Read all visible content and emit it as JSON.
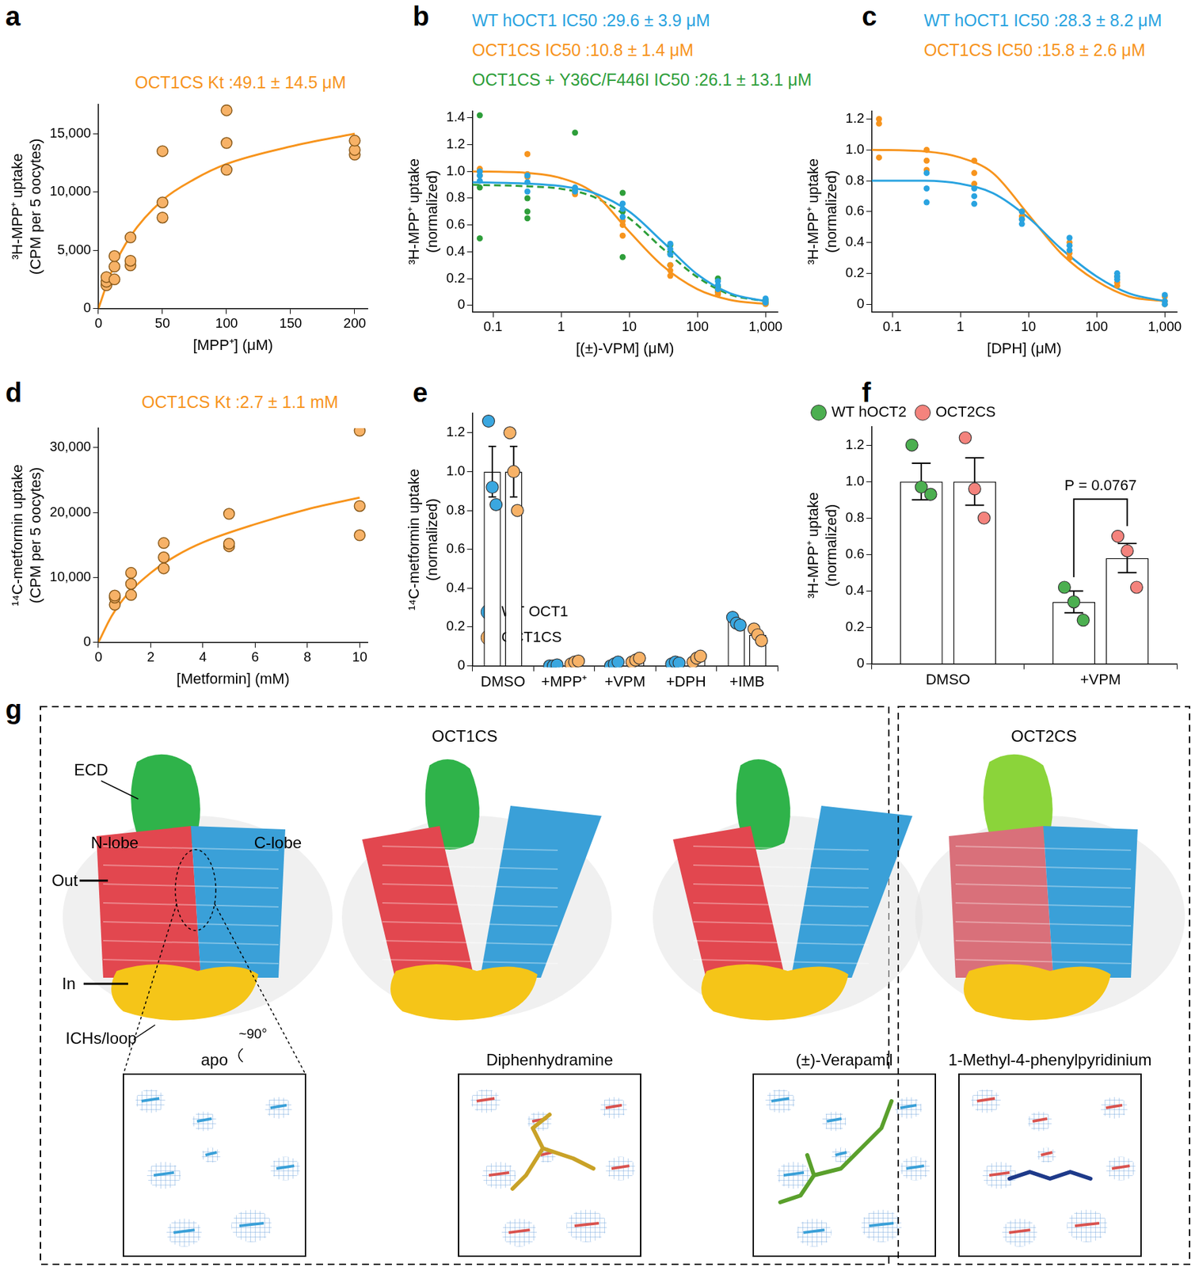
{
  "chart_data": [
    {
      "panel_label": "a",
      "type": "scatter",
      "annotations": [
        {
          "text": "OCT1CS Kt :49.1 ± 14.5 μM",
          "color": "#f7941d"
        }
      ],
      "x_label": "[MPP⁺] (μM)",
      "y_label": [
        "³H-MPP⁺ uptake",
        "(CPM per 5 oocytes)"
      ],
      "xlim": [
        0,
        210
      ],
      "xticks": [
        0,
        50,
        100,
        150,
        200
      ],
      "ylim": [
        0,
        17500
      ],
      "yticks": [
        0,
        {
          "value": 5000,
          "label": "5,000"
        },
        {
          "value": 10000,
          "label": "10,000"
        },
        {
          "value": 15000,
          "label": "15,000"
        }
      ],
      "grid": false,
      "series": [
        {
          "name": "OCT1CS",
          "type": "scatter",
          "marker": "circle_outlined",
          "color": "#f7b267",
          "x": [
            6.25,
            6.25,
            6.25,
            12.5,
            12.5,
            12.5,
            25,
            25,
            25,
            50,
            50,
            50,
            100,
            100,
            100,
            200,
            200,
            200
          ],
          "values": [
            2000,
            2300,
            2700,
            2500,
            3600,
            4500,
            3700,
            4100,
            6100,
            7800,
            9100,
            13500,
            11900,
            14200,
            17000,
            13200,
            13600,
            14400
          ]
        },
        {
          "name": "OCT1CS",
          "type": "line",
          "line_style": "solid",
          "color": "#f7941d",
          "x": [
            0,
            10,
            25,
            50,
            75,
            100,
            150,
            200
          ],
          "values": [
            0,
            3100,
            6200,
            9300,
            11100,
            12400,
            13900,
            15000
          ]
        }
      ]
    },
    {
      "panel_label": "b",
      "type": "scatter",
      "log": "x",
      "annotations": [
        {
          "text": "WT hOCT1 IC50 :29.6 ± 3.9 μM",
          "color": "#29a3e0"
        },
        {
          "text": "OCT1CS IC50 :10.8 ± 1.4 μM",
          "color": "#f7941d"
        },
        {
          "text": "OCT1CS + Y36C/F446I IC50 :26.1 ± 13.1 μM",
          "color": "#2e9e3a"
        }
      ],
      "x_label": "[(±)-VPM] (μM)",
      "y_label": [
        "³H-MPP⁺ uptake",
        "(normalized)"
      ],
      "xlim": [
        0.05,
        1500
      ],
      "xticks": [
        0.1,
        1,
        10,
        100,
        {
          "value": 1000,
          "label": "1,000"
        }
      ],
      "ylim": [
        -0.05,
        1.45
      ],
      "yticks": [
        0,
        0.2,
        0.4,
        0.6,
        0.8,
        {
          "value": 1,
          "label": "1.0"
        },
        1.2,
        1.4
      ],
      "grid": false,
      "series": [
        {
          "name": "WT hOCT1",
          "type": "scatter",
          "marker": "circle",
          "color": "#29a3e0",
          "x": [
            0.064,
            0.064,
            0.064,
            0.32,
            0.32,
            0.32,
            1.6,
            1.6,
            1.6,
            8,
            8,
            8,
            40,
            40,
            40,
            200,
            200,
            200,
            1000,
            1000,
            1000
          ],
          "values": [
            0.93,
            0.97,
            1.0,
            0.85,
            0.92,
            0.97,
            0.85,
            0.87,
            0.88,
            0.66,
            0.72,
            0.76,
            0.38,
            0.42,
            0.46,
            0.12,
            0.15,
            0.18,
            0.02,
            0.03,
            0.05
          ]
        },
        {
          "name": "OCT1CS",
          "type": "scatter",
          "marker": "circle",
          "color": "#f7941d",
          "x": [
            0.064,
            0.064,
            0.064,
            0.32,
            0.32,
            0.32,
            1.6,
            1.6,
            1.6,
            8,
            8,
            8,
            40,
            40,
            40,
            200,
            200,
            200,
            1000,
            1000,
            1000
          ],
          "values": [
            1.0,
            0.97,
            1.02,
            1.13,
            0.98,
            0.96,
            0.85,
            0.83,
            0.87,
            0.52,
            0.6,
            0.63,
            0.22,
            0.26,
            0.3,
            0.08,
            0.1,
            0.12,
            0.01,
            0.02,
            0.02
          ]
        },
        {
          "name": "OCT1CS + Y36C/F446I",
          "type": "scatter",
          "marker": "circle",
          "color": "#2e9e3a",
          "x": [
            0.064,
            0.064,
            0.064,
            0.32,
            0.32,
            0.32,
            1.6,
            1.6,
            1.6,
            8,
            8,
            8,
            40,
            40,
            40,
            200,
            200,
            200,
            1000,
            1000,
            1000
          ],
          "values": [
            1.42,
            0.88,
            0.5,
            0.7,
            0.65,
            0.8,
            0.86,
            0.85,
            1.29,
            0.84,
            0.7,
            0.36,
            0.45,
            0.4,
            0.3,
            0.2,
            0.14,
            0.1,
            0.04,
            0.02,
            0.01
          ]
        },
        {
          "name": "WT hOCT1",
          "type": "line",
          "line_style": "solid",
          "color": "#29a3e0",
          "x": [
            0.05,
            0.3,
            1,
            3,
            10,
            30,
            100,
            300,
            1000
          ],
          "values": [
            0.92,
            0.91,
            0.89,
            0.84,
            0.7,
            0.48,
            0.23,
            0.09,
            0.03
          ]
        },
        {
          "name": "OCT1CS",
          "type": "line",
          "line_style": "solid",
          "color": "#f7941d",
          "x": [
            0.05,
            0.3,
            1,
            3,
            10,
            30,
            100,
            300,
            1000
          ],
          "values": [
            1.0,
            0.99,
            0.95,
            0.84,
            0.55,
            0.3,
            0.12,
            0.04,
            0.01
          ]
        },
        {
          "name": "OCT1CS + Y36C/F446I",
          "type": "line",
          "line_style": "dashed",
          "color": "#2e9e3a",
          "x": [
            0.05,
            0.3,
            1,
            3,
            10,
            30,
            100,
            300,
            1000
          ],
          "values": [
            0.9,
            0.89,
            0.87,
            0.81,
            0.65,
            0.43,
            0.21,
            0.08,
            0.03
          ]
        }
      ]
    },
    {
      "panel_label": "c",
      "type": "scatter",
      "log": "x",
      "annotations": [
        {
          "text": "WT hOCT1 IC50 :28.3 ± 8.2 μM",
          "color": "#29a3e0"
        },
        {
          "text": "OCT1CS IC50 :15.8 ± 2.6 μM",
          "color": "#f7941d"
        }
      ],
      "x_label": "[DPH] (μM)",
      "y_label": [
        "³H-MPP⁺ uptake",
        "(normalized)"
      ],
      "xlim": [
        0.05,
        1500
      ],
      "xticks": [
        0.1,
        1,
        10,
        100,
        {
          "value": 1000,
          "label": "1,000"
        }
      ],
      "ylim": [
        -0.05,
        1.25
      ],
      "yticks": [
        0,
        0.2,
        0.4,
        0.6,
        0.8,
        {
          "value": 1,
          "label": "1.0"
        },
        1.2
      ],
      "grid": false,
      "series": [
        {
          "name": "WT hOCT1",
          "type": "scatter",
          "marker": "circle",
          "color": "#29a3e0",
          "x": [
            0.32,
            0.32,
            0.32,
            1.6,
            1.6,
            1.6,
            8,
            8,
            8,
            40,
            40,
            40,
            200,
            200,
            200,
            1000,
            1000,
            1000
          ],
          "values": [
            0.85,
            0.75,
            0.66,
            0.75,
            0.7,
            0.65,
            0.6,
            0.55,
            0.52,
            0.43,
            0.38,
            0.35,
            0.2,
            0.18,
            0.16,
            0.06,
            0.02,
            0.0
          ]
        },
        {
          "name": "OCT1CS",
          "type": "scatter",
          "marker": "circle",
          "color": "#f7941d",
          "x": [
            0.064,
            0.064,
            0.064,
            0.32,
            0.32,
            0.32,
            1.6,
            1.6,
            1.6,
            8,
            8,
            8,
            40,
            40,
            40,
            200,
            200,
            200,
            1000,
            1000,
            1000
          ],
          "values": [
            1.2,
            1.17,
            0.95,
            1.0,
            0.93,
            0.87,
            0.93,
            0.85,
            0.78,
            0.6,
            0.57,
            0.55,
            0.4,
            0.33,
            0.3,
            0.18,
            0.14,
            0.12,
            0.05,
            0.02,
            0.0
          ]
        },
        {
          "name": "WT hOCT1",
          "type": "line",
          "line_style": "solid",
          "color": "#29a3e0",
          "x": [
            0.05,
            0.3,
            1,
            3,
            10,
            30,
            100,
            300,
            1000
          ],
          "values": [
            0.8,
            0.8,
            0.78,
            0.72,
            0.56,
            0.36,
            0.18,
            0.07,
            0.02
          ]
        },
        {
          "name": "OCT1CS",
          "type": "line",
          "line_style": "solid",
          "color": "#f7941d",
          "x": [
            0.05,
            0.3,
            1,
            3,
            10,
            30,
            100,
            300,
            1000
          ],
          "values": [
            1.0,
            0.99,
            0.95,
            0.85,
            0.58,
            0.33,
            0.15,
            0.05,
            0.02
          ]
        }
      ]
    },
    {
      "panel_label": "d",
      "type": "scatter",
      "annotations": [
        {
          "text": "OCT1CS Kt :2.7 ± 1.1 mM",
          "color": "#f7941d"
        }
      ],
      "x_label": "[Metformin] (mM)",
      "y_label": [
        "¹⁴C-metformin uptake",
        "(CPM per 5 oocytes)"
      ],
      "xlim": [
        0,
        10.3
      ],
      "xticks": [
        0,
        2,
        4,
        6,
        8,
        10
      ],
      "ylim": [
        0,
        33000
      ],
      "yticks": [
        0,
        {
          "value": 10000,
          "label": "10,000"
        },
        {
          "value": 20000,
          "label": "20,000"
        },
        {
          "value": 30000,
          "label": "30,000"
        }
      ],
      "grid": false,
      "series": [
        {
          "name": "OCT1CS",
          "type": "scatter",
          "marker": "circle_outlined",
          "color": "#f7b267",
          "x": [
            0.625,
            0.625,
            0.625,
            1.25,
            1.25,
            1.25,
            2.5,
            2.5,
            2.5,
            5,
            5,
            5,
            10,
            10,
            10
          ],
          "values": [
            5800,
            6900,
            7200,
            7300,
            9000,
            10700,
            11400,
            13100,
            15300,
            14800,
            15200,
            19800,
            16500,
            21000,
            32600
          ]
        },
        {
          "name": "OCT1CS",
          "type": "line",
          "line_style": "solid",
          "color": "#f7941d",
          "x": [
            0,
            0.5,
            1,
            2,
            3,
            4,
            6,
            8,
            10
          ],
          "values": [
            0,
            4000,
            6900,
            10700,
            13400,
            15400,
            18200,
            20500,
            22300
          ]
        }
      ]
    },
    {
      "panel_label": "e",
      "type": "bar",
      "y_label": [
        "¹⁴C-metformin uptake",
        "(normalized)"
      ],
      "categories": [
        "DMSO",
        "+MPP⁺",
        "+VPM",
        "+DPH",
        "+IMB"
      ],
      "ylim": [
        0,
        1.3
      ],
      "yticks": [
        0,
        0.2,
        0.4,
        0.6,
        0.8,
        {
          "value": 1,
          "label": "1.0"
        },
        1.2
      ],
      "grid": false,
      "legend": "upper right",
      "series": [
        {
          "name": "WT OCT1",
          "color": "#3aa7e0",
          "values": [
            1.0,
            0.0,
            0.01,
            0.015,
            0.23
          ],
          "errors": [
            0.13,
            0.005,
            0.01,
            0.008,
            0.015
          ],
          "points": [
            [
              1.26,
              0.92,
              0.83
            ],
            [
              0.0,
              0.0,
              0.005
            ],
            [
              0.0,
              0.01,
              0.02
            ],
            [
              0.01,
              0.02,
              0.015
            ],
            [
              0.25,
              0.22,
              0.21
            ]
          ]
        },
        {
          "name": "OCT1CS",
          "color": "#f7b267",
          "values": [
            1.0,
            0.02,
            0.03,
            0.035,
            0.16
          ],
          "errors": [
            0.13,
            0.008,
            0.01,
            0.01,
            0.02
          ],
          "points": [
            [
              1.2,
              1.0,
              0.8
            ],
            [
              0.01,
              0.02,
              0.025
            ],
            [
              0.02,
              0.03,
              0.04
            ],
            [
              0.02,
              0.04,
              0.05
            ],
            [
              0.19,
              0.16,
              0.13
            ]
          ]
        }
      ]
    },
    {
      "panel_label": "f",
      "type": "bar",
      "y_label": [
        "³H-MPP⁺ uptake",
        "(normalized)"
      ],
      "categories": [
        "DMSO",
        "+VPM"
      ],
      "ylim": [
        0,
        1.3
      ],
      "yticks": [
        0,
        0.2,
        0.4,
        0.6,
        0.8,
        {
          "value": 1,
          "label": "1.0"
        },
        1.2
      ],
      "grid": false,
      "legend": "top",
      "annotations": [
        {
          "text": "P = 0.0767",
          "category": "+VPM"
        }
      ],
      "series": [
        {
          "name": "WT hOCT2",
          "color": "#4caf50",
          "values": [
            1.0,
            0.34
          ],
          "errors": [
            0.1,
            0.06
          ],
          "points": [
            [
              1.2,
              0.97,
              0.93
            ],
            [
              0.42,
              0.34,
              0.24
            ]
          ]
        },
        {
          "name": "OCT2CS",
          "color": "#f4837d",
          "values": [
            1.0,
            0.58
          ],
          "errors": [
            0.13,
            0.08
          ],
          "points": [
            [
              1.24,
              0.96,
              0.8
            ],
            [
              0.7,
              0.62,
              0.42
            ]
          ]
        }
      ]
    }
  ],
  "diagram": {
    "panel_label": "g",
    "boxes": [
      {
        "title": "OCT1CS",
        "structures": [
          "apo",
          "Diphenhydramine",
          "(±)-Verapamil"
        ]
      },
      {
        "title": "OCT2CS",
        "structures": [
          "1-Methyl-4-phenylpyridinium"
        ]
      }
    ],
    "labels": [
      "ECD",
      "N-lobe",
      "C-lobe",
      "Out",
      "In",
      "ICHs/loop",
      "~90°"
    ]
  }
}
